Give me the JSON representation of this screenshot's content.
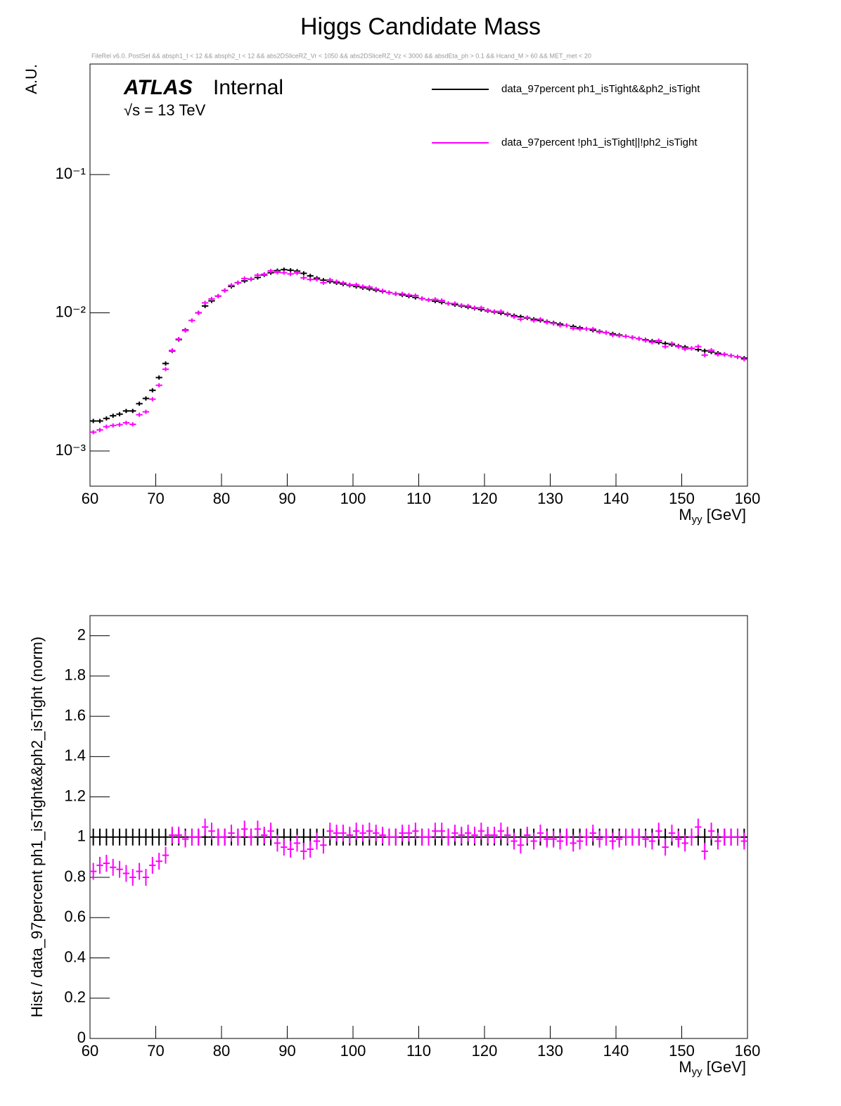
{
  "title": "Higgs Candidate Mass",
  "subtitle": "FileRel v6.0. PostSel &&  absph1_t < 12 && absph2_t < 12 && abs2DSliceRZ_Vr < 1050 && abs2DSliceRZ_Vz < 3000 && absdEta_ph > 0.1 && Hcand_M > 60 && MET_met < 20",
  "chart_data": [
    {
      "type": "histogram",
      "log_y": true,
      "legend": "top-right",
      "annotations": [
        "ATLAS",
        "Internal",
        "√s = 13 TeV"
      ],
      "ylabel": "A.U.",
      "xlabel": [
        "M",
        "yy",
        " [GeV]"
      ],
      "xlim": [
        60,
        160
      ],
      "xticks": [
        60,
        70,
        80,
        90,
        100,
        110,
        120,
        130,
        140,
        150,
        160
      ],
      "ylim": [
        0.000557,
        0.63
      ],
      "yticks": [
        {
          "value": 0.001,
          "label": "10⁻³"
        },
        {
          "value": 0.01,
          "label": "10⁻²"
        },
        {
          "value": 0.1,
          "label": "10⁻¹"
        }
      ],
      "bins": [
        60,
        61,
        62,
        63,
        64,
        65,
        66,
        67,
        68,
        69,
        70,
        71,
        72,
        73,
        74,
        75,
        76,
        77,
        78,
        79,
        80,
        81,
        82,
        83,
        84,
        85,
        86,
        87,
        88,
        89,
        90,
        91,
        92,
        93,
        94,
        95,
        96,
        97,
        98,
        99,
        100,
        101,
        102,
        103,
        104,
        105,
        106,
        107,
        108,
        109,
        110,
        111,
        112,
        113,
        114,
        115,
        116,
        117,
        118,
        119,
        120,
        121,
        122,
        123,
        124,
        125,
        126,
        127,
        128,
        129,
        130,
        131,
        132,
        133,
        134,
        135,
        136,
        137,
        138,
        139,
        140,
        141,
        142,
        143,
        144,
        145,
        146,
        147,
        148,
        149,
        150,
        151,
        152,
        153,
        154,
        155,
        156,
        157,
        158,
        159,
        160
      ],
      "series": [
        {
          "name": "data_97percent ph1_isTight&&ph2_isTight",
          "color": "#000000",
          "values": [
            0.00165,
            0.00165,
            0.00172,
            0.0018,
            0.00185,
            0.00195,
            0.00195,
            0.0022,
            0.0024,
            0.00275,
            0.0034,
            0.0043,
            0.0053,
            0.0064,
            0.0075,
            0.0088,
            0.01,
            0.0112,
            0.0122,
            0.0132,
            0.0145,
            0.0155,
            0.0165,
            0.017,
            0.0175,
            0.018,
            0.0188,
            0.0195,
            0.0202,
            0.0205,
            0.0203,
            0.02,
            0.0193,
            0.0185,
            0.0178,
            0.0172,
            0.0168,
            0.01646,
            0.01613,
            0.01581,
            0.01549,
            0.01518,
            0.01488,
            0.01458,
            0.01429,
            0.014,
            0.01372,
            0.01345,
            0.01318,
            0.01292,
            0.01266,
            0.0124,
            0.01215,
            0.01191,
            0.01167,
            0.01144,
            0.01121,
            0.01099,
            0.01077,
            0.01055,
            0.01034,
            0.01013,
            0.00993,
            0.00973,
            0.00954,
            0.00935,
            0.00916,
            0.00898,
            0.0088,
            0.00862,
            0.00845,
            0.00828,
            0.00811,
            0.00795,
            0.00779,
            0.00764,
            0.00748,
            0.00733,
            0.00719,
            0.00704,
            0.0069,
            0.00676,
            0.00663,
            0.0065,
            0.00637,
            0.00624,
            0.00611,
            0.00599,
            0.00587,
            0.00575,
            0.00564,
            0.00553,
            0.00542,
            0.00531,
            0.0052,
            0.0051,
            0.005,
            0.0049,
            0.0048,
            0.0047
          ]
        },
        {
          "name": "data_97percent !ph1_isTight||!ph2_isTight",
          "color": "#ff00ff",
          "values": [
            0.00137,
            0.00142,
            0.0015,
            0.00153,
            0.00155,
            0.0016,
            0.00156,
            0.00183,
            0.00192,
            0.00237,
            0.00299,
            0.00391,
            0.00535,
            0.00646,
            0.00743,
            0.0088,
            0.01,
            0.0118,
            0.0126,
            0.0132,
            0.0145,
            0.0158,
            0.0165,
            0.0177,
            0.0175,
            0.0187,
            0.019,
            0.0201,
            0.0196,
            0.0195,
            0.0191,
            0.0194,
            0.0179,
            0.0174,
            0.0174,
            0.0165,
            0.0173,
            0.0168,
            0.01645,
            0.01597,
            0.01595,
            0.01548,
            0.01533,
            0.01487,
            0.01443,
            0.014,
            0.01372,
            0.01372,
            0.01344,
            0.01331,
            0.01266,
            0.0124,
            0.01251,
            0.01227,
            0.01167,
            0.01167,
            0.01132,
            0.01121,
            0.01088,
            0.01087,
            0.01044,
            0.01023,
            0.01023,
            0.00983,
            0.00935,
            0.00898,
            0.00925,
            0.0088,
            0.00898,
            0.00853,
            0.00837,
            0.00811,
            0.00811,
            0.00771,
            0.00763,
            0.00764,
            0.00763,
            0.00726,
            0.00719,
            0.0069,
            0.00683,
            0.00676,
            0.00663,
            0.0065,
            0.00631,
            0.00612,
            0.00629,
            0.00569,
            0.00599,
            0.00569,
            0.00547,
            0.00553,
            0.00569,
            0.00494,
            0.00536,
            0.005,
            0.005,
            0.0049,
            0.0048,
            0.00461
          ]
        }
      ]
    },
    {
      "type": "histogram",
      "log_y": false,
      "ylabel": "Hist / data_97percent ph1_isTight&&ph2_isTight (norm)",
      "xlabel": [
        "M",
        "yy",
        " [GeV]"
      ],
      "xlim": [
        60,
        160
      ],
      "xticks": [
        60,
        70,
        80,
        90,
        100,
        110,
        120,
        130,
        140,
        150,
        160
      ],
      "ylim": [
        0,
        2.1
      ],
      "yticks": [
        0,
        0.2,
        0.4,
        0.6,
        0.8,
        1,
        1.2,
        1.4,
        1.6,
        1.8,
        2
      ],
      "bins": [
        60,
        61,
        62,
        63,
        64,
        65,
        66,
        67,
        68,
        69,
        70,
        71,
        72,
        73,
        74,
        75,
        76,
        77,
        78,
        79,
        80,
        81,
        82,
        83,
        84,
        85,
        86,
        87,
        88,
        89,
        90,
        91,
        92,
        93,
        94,
        95,
        96,
        97,
        98,
        99,
        100,
        101,
        102,
        103,
        104,
        105,
        106,
        107,
        108,
        109,
        110,
        111,
        112,
        113,
        114,
        115,
        116,
        117,
        118,
        119,
        120,
        121,
        122,
        123,
        124,
        125,
        126,
        127,
        128,
        129,
        130,
        131,
        132,
        133,
        134,
        135,
        136,
        137,
        138,
        139,
        140,
        141,
        142,
        143,
        144,
        145,
        146,
        147,
        148,
        149,
        150,
        151,
        152,
        153,
        154,
        155,
        156,
        157,
        158,
        159,
        160
      ],
      "series": [
        {
          "color": "#000000",
          "values": [
            1,
            1,
            1,
            1,
            1,
            1,
            1,
            1,
            1,
            1,
            1,
            1,
            1,
            1,
            1,
            1,
            1,
            1,
            1,
            1,
            1,
            1,
            1,
            1,
            1,
            1,
            1,
            1,
            1,
            1,
            1,
            1,
            1,
            1,
            1,
            1,
            1,
            1,
            1,
            1,
            1,
            1,
            1,
            1,
            1,
            1,
            1,
            1,
            1,
            1,
            1,
            1,
            1,
            1,
            1,
            1,
            1,
            1,
            1,
            1,
            1,
            1,
            1,
            1,
            1,
            1,
            1,
            1,
            1,
            1,
            1,
            1,
            1,
            1,
            1,
            1,
            1,
            1,
            1,
            1,
            1,
            1,
            1,
            1,
            1,
            1,
            1,
            1,
            1,
            1,
            1,
            1,
            1,
            1,
            1,
            1,
            1,
            1,
            1,
            1
          ]
        },
        {
          "color": "#ff00ff",
          "values": [
            0.83,
            0.86,
            0.87,
            0.85,
            0.84,
            0.82,
            0.8,
            0.83,
            0.8,
            0.86,
            0.88,
            0.91,
            1.01,
            1.01,
            0.99,
            1,
            1,
            1.05,
            1.03,
            1,
            1,
            1.02,
            1,
            1.04,
            1,
            1.04,
            1.01,
            1.03,
            0.97,
            0.95,
            0.94,
            0.97,
            0.93,
            0.94,
            0.98,
            0.96,
            1.03,
            1.02,
            1.02,
            1.01,
            1.03,
            1.02,
            1.03,
            1.02,
            1.01,
            1,
            1,
            1.02,
            1.02,
            1.03,
            1,
            1,
            1.03,
            1.03,
            1,
            1.02,
            1.01,
            1.02,
            1.01,
            1.03,
            1.01,
            1.01,
            1.03,
            1.01,
            0.98,
            0.96,
            1.01,
            0.98,
            1.02,
            0.99,
            0.99,
            0.98,
            1,
            0.97,
            0.98,
            1,
            1.02,
            0.99,
            1,
            0.98,
            0.99,
            1,
            1,
            1,
            0.99,
            0.98,
            1.03,
            0.95,
            1.02,
            0.99,
            0.97,
            1,
            1.05,
            0.93,
            1.03,
            0.98,
            1,
            1,
            1,
            0.98
          ]
        }
      ]
    }
  ]
}
